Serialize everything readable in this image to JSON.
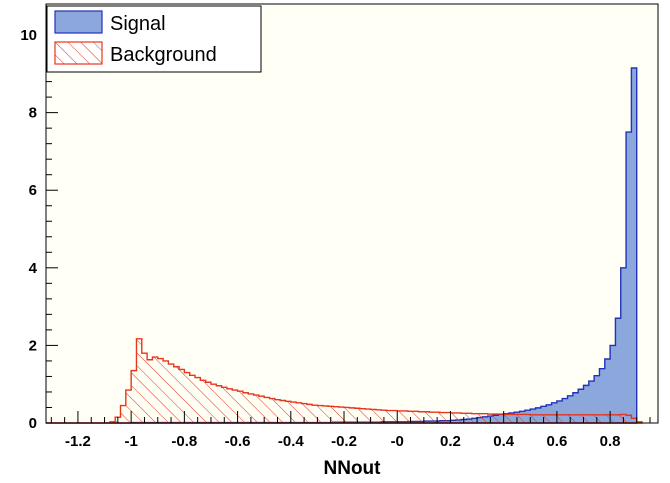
{
  "chart_data": {
    "type": "histogram",
    "title": "",
    "xlabel": "NNout",
    "ylabel": "",
    "xlim": [
      -1.32,
      0.98
    ],
    "ylim": [
      0,
      10.8
    ],
    "bin_width": 0.02,
    "x_start": -1.32,
    "x_ticks": [
      "-1.2",
      "-1",
      "-0.8",
      "-0.6",
      "-0.4",
      "-0.2",
      "-0",
      "0.2",
      "0.4",
      "0.6",
      "0.8"
    ],
    "x_tick_values": [
      -1.2,
      -1.0,
      -0.8,
      -0.6,
      -0.4,
      -0.2,
      0.0,
      0.2,
      0.4,
      0.6,
      0.8
    ],
    "y_ticks": [
      "0",
      "2",
      "4",
      "6",
      "8",
      "10"
    ],
    "y_tick_values": [
      0,
      2,
      4,
      6,
      8,
      10
    ],
    "legend_position": "top-left",
    "colors": {
      "signal_fill": "#8ba7dc",
      "signal_line": "#2233bb",
      "background_line": "#e8351d",
      "plot_bg": "#fffff6"
    },
    "series": [
      {
        "name": "Signal",
        "style": "filled",
        "values": [
          0,
          0,
          0,
          0,
          0,
          0,
          0,
          0,
          0,
          0,
          0,
          0,
          0,
          0,
          0,
          0,
          0.01,
          0.01,
          0.01,
          0.01,
          0.01,
          0.01,
          0.01,
          0.01,
          0.01,
          0.01,
          0.01,
          0.01,
          0.01,
          0.01,
          0.01,
          0.01,
          0.01,
          0.01,
          0.01,
          0.01,
          0.01,
          0.01,
          0.01,
          0.01,
          0.01,
          0.01,
          0.01,
          0.01,
          0.01,
          0.01,
          0.01,
          0.01,
          0.01,
          0.01,
          0.01,
          0.01,
          0.01,
          0.01,
          0.02,
          0.02,
          0.02,
          0.02,
          0.02,
          0.02,
          0.02,
          0.02,
          0.02,
          0.03,
          0.03,
          0.03,
          0.03,
          0.03,
          0.04,
          0.04,
          0.04,
          0.05,
          0.05,
          0.05,
          0.06,
          0.06,
          0.07,
          0.08,
          0.09,
          0.1,
          0.12,
          0.14,
          0.16,
          0.18,
          0.2,
          0.22,
          0.24,
          0.26,
          0.28,
          0.3,
          0.33,
          0.36,
          0.39,
          0.43,
          0.47,
          0.52,
          0.57,
          0.63,
          0.7,
          0.78,
          0.87,
          0.97,
          1.08,
          1.22,
          1.4,
          1.65,
          2.0,
          2.7,
          4.0,
          7.5,
          9.15
        ]
      },
      {
        "name": "Background",
        "style": "hatched",
        "values": [
          0,
          0,
          0,
          0,
          0,
          0,
          0,
          0,
          0,
          0,
          0,
          0,
          0.03,
          0.15,
          0.45,
          0.85,
          1.35,
          2.17,
          1.8,
          1.63,
          1.7,
          1.66,
          1.6,
          1.52,
          1.45,
          1.38,
          1.3,
          1.23,
          1.17,
          1.1,
          1.05,
          1.0,
          0.96,
          0.92,
          0.88,
          0.85,
          0.82,
          0.78,
          0.75,
          0.72,
          0.69,
          0.66,
          0.63,
          0.6,
          0.58,
          0.56,
          0.54,
          0.52,
          0.5,
          0.48,
          0.46,
          0.45,
          0.44,
          0.43,
          0.42,
          0.41,
          0.4,
          0.39,
          0.38,
          0.37,
          0.36,
          0.35,
          0.34,
          0.33,
          0.32,
          0.32,
          0.31,
          0.31,
          0.3,
          0.3,
          0.29,
          0.29,
          0.28,
          0.28,
          0.27,
          0.27,
          0.26,
          0.26,
          0.25,
          0.25,
          0.24,
          0.24,
          0.24,
          0.23,
          0.23,
          0.23,
          0.22,
          0.22,
          0.22,
          0.22,
          0.22,
          0.21,
          0.21,
          0.21,
          0.21,
          0.21,
          0.21,
          0.21,
          0.21,
          0.21,
          0.21,
          0.21,
          0.21,
          0.21,
          0.21,
          0.21,
          0.21,
          0.21,
          0.22,
          0.2,
          0.12,
          0.03
        ]
      }
    ]
  }
}
